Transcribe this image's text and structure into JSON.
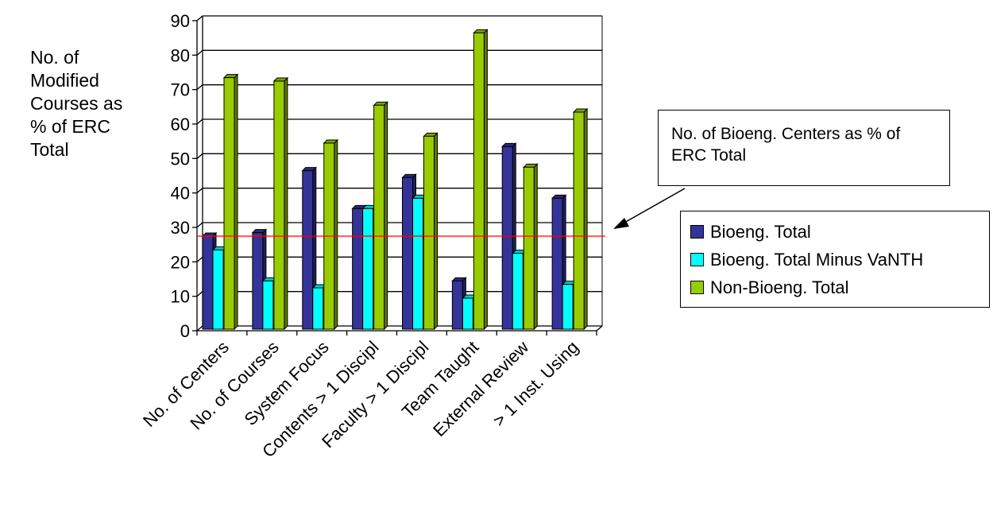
{
  "chart_data": {
    "type": "bar",
    "title": "",
    "ylabel_lines": [
      "No. of",
      "Modified",
      "Courses as",
      "% of ERC",
      "Total"
    ],
    "xlabel": "",
    "categories": [
      "No. of Centers",
      "No. of Courses",
      "System Focus",
      "Contents > 1 Discipl",
      "Faculty > 1 Discipl",
      "Team Taught",
      "External Review",
      "> 1 Inst. Using"
    ],
    "series": [
      {
        "name": "Bioeng. Total",
        "color": "#333399",
        "values": [
          27,
          28,
          46,
          35,
          44,
          14,
          53,
          38
        ]
      },
      {
        "name": "Bioeng. Total Minus VaNTH",
        "color": "#00FFFF",
        "values": [
          23,
          14,
          12,
          35,
          38,
          9,
          22,
          13
        ]
      },
      {
        "name": "Non-Bioeng. Total",
        "color": "#99CC00",
        "values": [
          73,
          72,
          54,
          65,
          56,
          86,
          47,
          63
        ]
      }
    ],
    "ylim": [
      0,
      90
    ],
    "yticks": [
      0,
      10,
      20,
      30,
      40,
      50,
      60,
      70,
      80,
      90
    ],
    "grid": true,
    "legend_position": "right",
    "reference_line": {
      "value": 27,
      "color": "#FF0000"
    },
    "annotation": "No. of Bioeng. Centers as % of ERC Total"
  }
}
